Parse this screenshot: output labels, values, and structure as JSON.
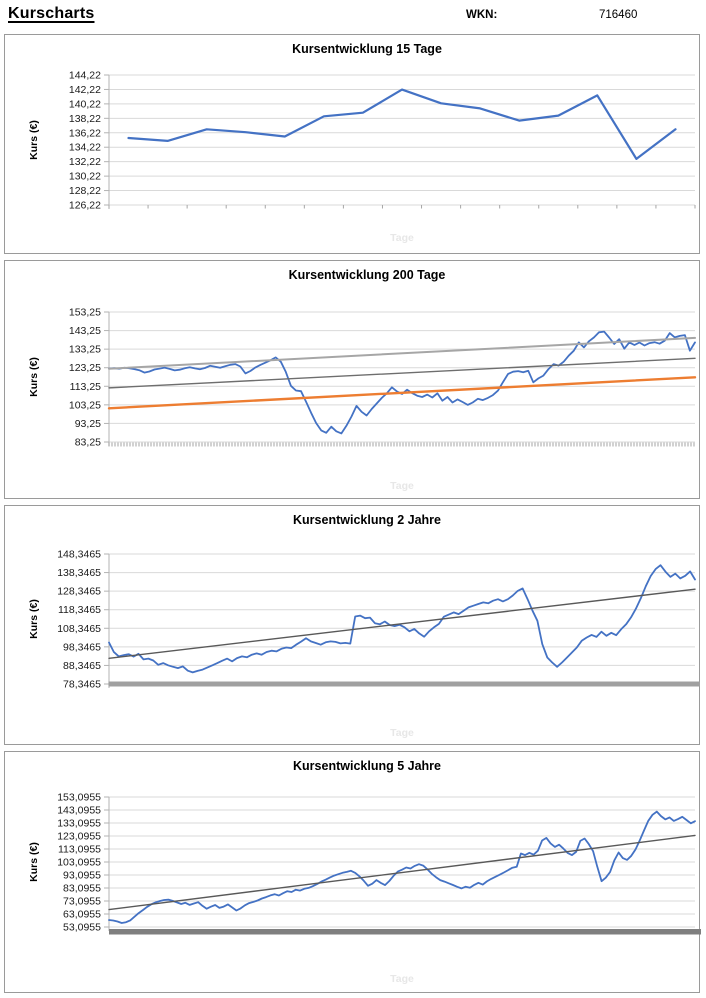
{
  "header": {
    "title": "Kurscharts",
    "wkn_label": "WKN:",
    "wkn_value": "716460"
  },
  "chart_data": [
    {
      "type": "line",
      "title": "Kursentwicklung 15 Tage",
      "xlabel": "Tage",
      "ylabel": "Kurs (€)",
      "y_ticks": [
        "144,22",
        "142,22",
        "140,22",
        "138,22",
        "136,22",
        "134,22",
        "132,22",
        "130,22",
        "128,22",
        "126,22"
      ],
      "ylim": [
        126.22,
        144.22
      ],
      "grid": true,
      "legend": "none",
      "axis_band": "sparse",
      "category_centered": true,
      "series": [
        {
          "name": "kurs",
          "color": "#4472C4",
          "width": 2.2,
          "values": [
            135.5,
            135.1,
            136.7,
            136.3,
            135.7,
            138.5,
            139.0,
            142.2,
            140.3,
            139.6,
            137.9,
            138.6,
            141.4,
            132.6,
            136.7
          ]
        }
      ]
    },
    {
      "type": "line",
      "title": "Kursentwicklung 200 Tage",
      "xlabel": "Tage",
      "ylabel": "Kurs (€)",
      "y_ticks": [
        "153,25",
        "143,25",
        "133,25",
        "123,25",
        "113,25",
        "103,25",
        "93,25",
        "83,25"
      ],
      "ylim": [
        83.25,
        153.25
      ],
      "grid": true,
      "legend": "none",
      "axis_band": "dense",
      "category_centered": false,
      "series": [
        {
          "name": "kurs",
          "color": "#4472C4",
          "width": 1.8,
          "values": [
            122.8,
            123.0,
            122.7,
            123.2,
            123.0,
            122.5,
            121.9,
            120.6,
            121.2,
            122.3,
            122.8,
            123.3,
            122.6,
            121.8,
            122.2,
            123.0,
            123.5,
            122.9,
            122.4,
            123.1,
            124.3,
            123.8,
            123.2,
            124.0,
            124.8,
            125.2,
            123.9,
            120.2,
            121.5,
            123.4,
            124.8,
            126.0,
            127.3,
            128.8,
            126.5,
            121.0,
            113.5,
            111.0,
            110.6,
            105.0,
            99.0,
            93.5,
            89.5,
            88.2,
            91.5,
            89.0,
            87.9,
            92.0,
            97.0,
            102.7,
            99.5,
            97.5,
            101.0,
            104.0,
            107.0,
            109.5,
            112.7,
            110.5,
            109.1,
            111.4,
            109.6,
            108.2,
            107.5,
            108.8,
            107.2,
            109.5,
            105.5,
            107.5,
            104.5,
            106.2,
            104.8,
            103.2,
            104.5,
            106.5,
            105.8,
            107.0,
            108.5,
            110.9,
            115.5,
            119.9,
            121.1,
            121.4,
            120.8,
            121.6,
            115.4,
            117.5,
            119.0,
            122.5,
            125.2,
            124.4,
            126.5,
            129.7,
            132.4,
            136.9,
            134.2,
            137.5,
            139.6,
            142.3,
            142.7,
            139.5,
            136.0,
            138.6,
            133.5,
            136.9,
            135.5,
            136.8,
            135.2,
            136.5,
            137.0,
            136.2,
            137.8,
            141.9,
            139.6,
            140.4,
            140.8,
            132.4,
            136.9
          ]
        },
        {
          "name": "trendline-upper",
          "color": "#A6A6A6",
          "width": 2.0,
          "values": [
            122.7,
            139.3
          ]
        },
        {
          "name": "trendline-middle",
          "color": "#6E6E6E",
          "width": 1.4,
          "values": [
            112.4,
            128.3
          ]
        },
        {
          "name": "trendline-lower",
          "color": "#ED7D31",
          "width": 2.4,
          "values": [
            101.4,
            118.1
          ]
        }
      ]
    },
    {
      "type": "line",
      "title": "Kursentwicklung 2 Jahre",
      "xlabel": "Tage",
      "ylabel": "Kurs (€)",
      "y_ticks": [
        "148,3465",
        "138,3465",
        "128,3465",
        "118,3465",
        "108,3465",
        "98,3465",
        "88,3465",
        "78,3465"
      ],
      "ylim": [
        78.3465,
        148.3465
      ],
      "grid": true,
      "legend": "none",
      "axis_band": "band-light",
      "category_centered": false,
      "series": [
        {
          "name": "kurs",
          "color": "#4472C4",
          "width": 1.8,
          "values": [
            100.7,
            95.5,
            93.2,
            93.9,
            94.4,
            93.1,
            94.6,
            91.6,
            92.0,
            91.0,
            88.7,
            89.6,
            88.4,
            87.6,
            86.9,
            87.8,
            85.5,
            84.6,
            85.4,
            86.1,
            87.3,
            88.4,
            89.6,
            90.9,
            92.0,
            90.5,
            92.3,
            93.2,
            92.7,
            94.1,
            94.8,
            94.1,
            95.6,
            96.3,
            95.9,
            97.3,
            98.0,
            97.7,
            99.5,
            101.2,
            103.0,
            101.3,
            100.4,
            99.5,
            100.8,
            101.3,
            101.0,
            100.2,
            100.5,
            100.1,
            114.7,
            115.2,
            113.8,
            114.1,
            111.1,
            110.5,
            112.0,
            110.1,
            109.5,
            110.3,
            108.9,
            106.7,
            108.0,
            105.6,
            103.8,
            106.7,
            108.9,
            110.7,
            114.6,
            115.7,
            116.9,
            116.0,
            117.8,
            119.6,
            120.5,
            121.4,
            122.3,
            121.8,
            123.2,
            124.0,
            122.8,
            124.0,
            126.0,
            128.5,
            129.8,
            124.0,
            117.8,
            112.4,
            99.8,
            92.6,
            89.9,
            87.6,
            89.9,
            92.6,
            95.3,
            98.0,
            101.6,
            103.4,
            104.8,
            103.7,
            106.5,
            104.3,
            105.9,
            104.6,
            107.8,
            110.5,
            114.2,
            118.9,
            124.5,
            131.0,
            136.5,
            140.2,
            142.3,
            138.8,
            136.0,
            137.8,
            135.2,
            136.6,
            139.0,
            134.6
          ]
        },
        {
          "name": "trendline",
          "color": "#595959",
          "width": 1.4,
          "values": [
            92.2,
            129.4
          ]
        }
      ]
    },
    {
      "type": "line",
      "title": "Kursentwicklung 5 Jahre",
      "xlabel": "Tage",
      "ylabel": "Kurs (€)",
      "y_ticks": [
        "153,0955",
        "143,0955",
        "133,0955",
        "123,0955",
        "113,0955",
        "103,0955",
        "93,0955",
        "83,0955",
        "73,0955",
        "63,0955",
        "53,0955"
      ],
      "ylim": [
        53.0955,
        153.0955
      ],
      "grid": true,
      "legend": "none",
      "axis_band": "band-dark",
      "category_centered": false,
      "series": [
        {
          "name": "kurs",
          "color": "#4472C4",
          "width": 1.8,
          "values": [
            58.5,
            58.1,
            57.3,
            56.2,
            56.8,
            58.2,
            61.0,
            63.8,
            66.2,
            68.6,
            70.6,
            72.1,
            73.1,
            73.9,
            74.2,
            73.2,
            72.0,
            70.8,
            71.7,
            70.1,
            71.2,
            72.2,
            69.4,
            67.2,
            68.7,
            70.0,
            67.8,
            68.8,
            70.5,
            68.2,
            65.8,
            67.4,
            69.8,
            71.5,
            72.4,
            73.5,
            75.0,
            76.1,
            77.4,
            78.3,
            77.3,
            79.1,
            80.6,
            80.0,
            81.8,
            81.1,
            82.5,
            83.2,
            84.5,
            86.1,
            88.0,
            89.5,
            91.1,
            92.6,
            93.7,
            94.8,
            95.5,
            96.3,
            94.7,
            92.0,
            88.6,
            84.8,
            86.4,
            89.2,
            87.0,
            85.3,
            88.5,
            92.4,
            95.7,
            97.2,
            98.9,
            98.1,
            100.1,
            101.4,
            100.3,
            97.4,
            94.0,
            91.4,
            89.2,
            88.0,
            86.7,
            85.4,
            84.0,
            82.8,
            84.1,
            83.3,
            85.5,
            87.1,
            85.7,
            88.2,
            90.1,
            91.7,
            93.3,
            95.0,
            96.9,
            98.7,
            99.4,
            109.6,
            108.4,
            110.2,
            108.7,
            111.8,
            119.6,
            121.6,
            117.4,
            114.7,
            116.4,
            113.4,
            110.1,
            108.4,
            110.9,
            119.3,
            121.2,
            116.9,
            111.4,
            99.4,
            88.3,
            91.0,
            95.4,
            104.3,
            110.4,
            106.1,
            104.7,
            107.9,
            112.9,
            119.8,
            127.3,
            134.8,
            139.4,
            141.9,
            138.4,
            135.9,
            137.4,
            134.7,
            136.1,
            137.9,
            135.4,
            132.9,
            134.5
          ]
        },
        {
          "name": "trendline",
          "color": "#595959",
          "width": 1.4,
          "values": [
            66.5,
            123.5
          ]
        }
      ]
    }
  ]
}
